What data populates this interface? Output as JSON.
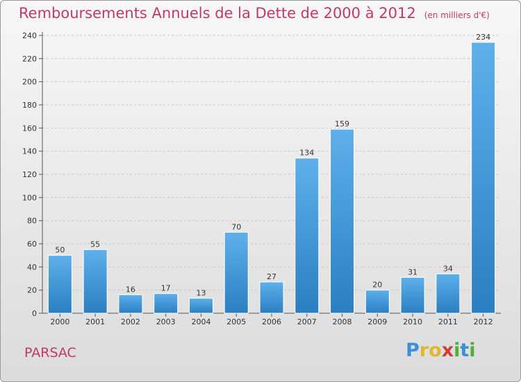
{
  "title": "Remboursements Annuels de la Dette de 2000 à 2012",
  "title_unit": "(en milliers d'€)",
  "commune": "PARSAC",
  "logo": {
    "text": "Proxiti",
    "letters": [
      {
        "ch": "P",
        "color": "#3b8fd6"
      },
      {
        "ch": "r",
        "color": "#e0b82a"
      },
      {
        "ch": "o",
        "color": "#e0b82a"
      },
      {
        "ch": "x",
        "color": "#d63a3a"
      },
      {
        "ch": "i",
        "color": "#4caf3a"
      },
      {
        "ch": "t",
        "color": "#3b8fd6"
      },
      {
        "ch": "i",
        "color": "#4caf3a"
      }
    ]
  },
  "colors": {
    "bar_light": "#5fb0ea",
    "bar_dark": "#2a7fc2",
    "title": "#c2386b",
    "grid": "#c8c8c8"
  },
  "chart_data": {
    "type": "bar",
    "title": "Remboursements Annuels de la Dette de 2000 à 2012",
    "ylabel": "",
    "xlabel": "",
    "categories": [
      "2000",
      "2001",
      "2002",
      "2003",
      "2004",
      "2005",
      "2006",
      "2007",
      "2008",
      "2009",
      "2010",
      "2011",
      "2012"
    ],
    "values": [
      50,
      55,
      16,
      17,
      13,
      70,
      27,
      134,
      159,
      20,
      31,
      34,
      234
    ],
    "ylim": [
      0,
      240
    ],
    "yticks": [
      0,
      20,
      40,
      60,
      80,
      100,
      120,
      140,
      160,
      180,
      200,
      220,
      240
    ],
    "grid": "horizontal dashed"
  }
}
